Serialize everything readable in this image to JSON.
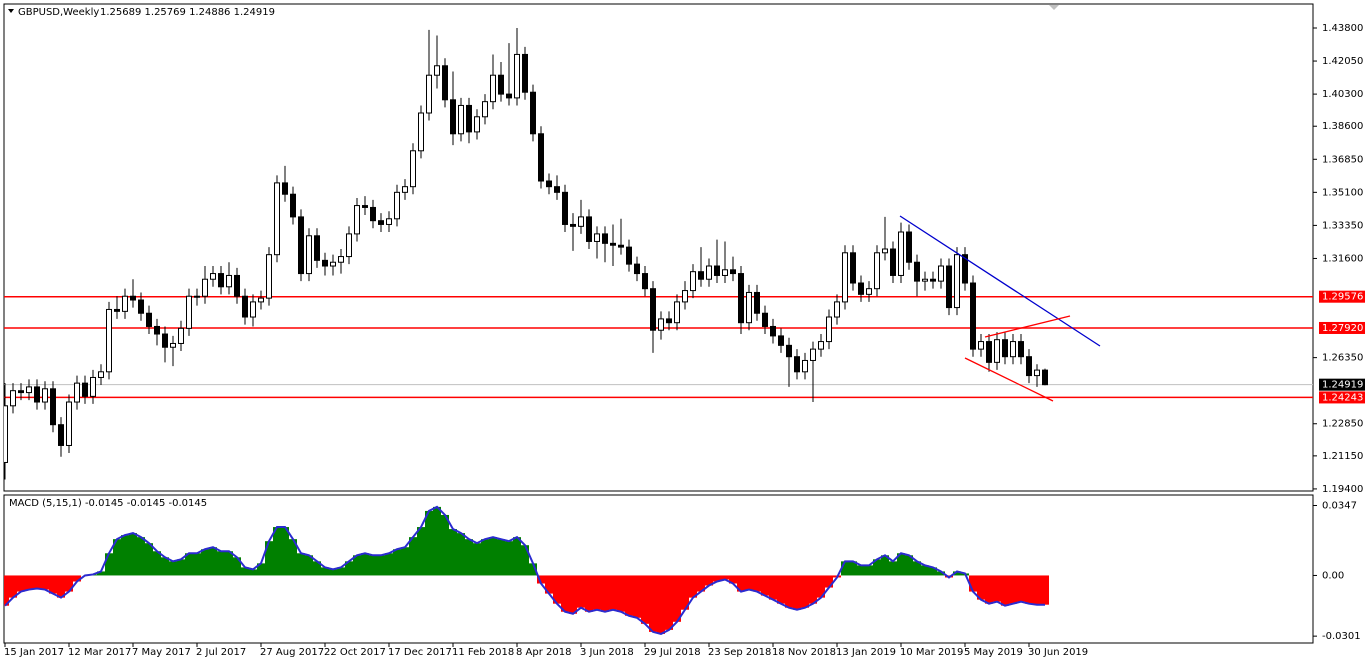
{
  "chart_data": [
    {
      "type": "candlestick",
      "title": "GBPUSD,Weekly",
      "info": "1.25689 1.25769 1.24886 1.24919",
      "categories": [
        "15 Jan 2017",
        null,
        null,
        null,
        null,
        null,
        null,
        null,
        "12 Mar 2017",
        null,
        null,
        null,
        null,
        null,
        null,
        null,
        "7 May 2017",
        null,
        null,
        null,
        null,
        null,
        null,
        null,
        "2 Jul 2017",
        null,
        null,
        null,
        null,
        null,
        null,
        null,
        "27 Aug 2017",
        null,
        null,
        null,
        null,
        null,
        null,
        null,
        "22 Oct 2017",
        null,
        null,
        null,
        null,
        null,
        null,
        null,
        "17 Dec 2017",
        null,
        null,
        null,
        null,
        null,
        null,
        null,
        "11 Feb 2018",
        null,
        null,
        null,
        null,
        null,
        null,
        null,
        "8 Apr 2018",
        null,
        null,
        null,
        null,
        null,
        null,
        null,
        "3 Jun 2018",
        null,
        null,
        null,
        null,
        null,
        null,
        null,
        "29 Jul 2018",
        null,
        null,
        null,
        null,
        null,
        null,
        null,
        "23 Sep 2018",
        null,
        null,
        null,
        null,
        null,
        null,
        null,
        "18 Nov 2018",
        null,
        null,
        null,
        null,
        null,
        null,
        null,
        "13 Jan 2019",
        null,
        null,
        null,
        null,
        null,
        null,
        null,
        "10 Mar 2019",
        null,
        null,
        null,
        null,
        null,
        null,
        null,
        "5 May 2019",
        null,
        null,
        null,
        null,
        null,
        null,
        null,
        "30 Jun 2019",
        null,
        null
      ],
      "ohlc": [
        [
          1.208,
          1.25,
          1.199,
          1.238
        ],
        [
          1.238,
          1.25,
          1.234,
          1.246
        ],
        [
          1.246,
          1.25,
          1.241,
          1.245
        ],
        [
          1.245,
          1.252,
          1.241,
          1.248
        ],
        [
          1.248,
          1.252,
          1.236,
          1.24
        ],
        [
          1.24,
          1.251,
          1.236,
          1.247
        ],
        [
          1.247,
          1.251,
          1.224,
          1.228
        ],
        [
          1.228,
          1.232,
          1.211,
          1.217
        ],
        [
          1.217,
          1.244,
          1.213,
          1.24
        ],
        [
          1.24,
          1.254,
          1.236,
          1.25
        ],
        [
          1.25,
          1.254,
          1.239,
          1.243
        ],
        [
          1.243,
          1.257,
          1.239,
          1.253
        ],
        [
          1.253,
          1.26,
          1.249,
          1.256
        ],
        [
          1.256,
          1.293,
          1.252,
          1.289
        ],
        [
          1.289,
          1.296,
          1.284,
          1.288
        ],
        [
          1.288,
          1.3,
          1.284,
          1.296
        ],
        [
          1.296,
          1.305,
          1.29,
          1.294
        ],
        [
          1.294,
          1.298,
          1.283,
          1.287
        ],
        [
          1.287,
          1.291,
          1.276,
          1.28
        ],
        [
          1.28,
          1.284,
          1.27,
          1.276
        ],
        [
          1.276,
          1.28,
          1.261,
          1.269
        ],
        [
          1.269,
          1.275,
          1.259,
          1.271
        ],
        [
          1.271,
          1.283,
          1.267,
          1.279
        ],
        [
          1.279,
          1.3,
          1.275,
          1.296
        ],
        [
          1.296,
          1.3,
          1.291,
          1.296
        ],
        [
          1.296,
          1.312,
          1.292,
          1.305
        ],
        [
          1.305,
          1.312,
          1.301,
          1.308
        ],
        [
          1.308,
          1.312,
          1.297,
          1.301
        ],
        [
          1.301,
          1.314,
          1.297,
          1.307
        ],
        [
          1.307,
          1.311,
          1.292,
          1.296
        ],
        [
          1.296,
          1.3,
          1.281,
          1.285
        ],
        [
          1.285,
          1.297,
          1.28,
          1.293
        ],
        [
          1.293,
          1.299,
          1.289,
          1.295
        ],
        [
          1.295,
          1.322,
          1.291,
          1.318
        ],
        [
          1.318,
          1.36,
          1.314,
          1.356
        ],
        [
          1.356,
          1.365,
          1.346,
          1.35
        ],
        [
          1.35,
          1.354,
          1.334,
          1.338
        ],
        [
          1.338,
          1.342,
          1.304,
          1.308
        ],
        [
          1.308,
          1.332,
          1.304,
          1.328
        ],
        [
          1.328,
          1.332,
          1.311,
          1.315
        ],
        [
          1.315,
          1.319,
          1.307,
          1.312
        ],
        [
          1.312,
          1.318,
          1.307,
          1.314
        ],
        [
          1.314,
          1.321,
          1.308,
          1.317
        ],
        [
          1.317,
          1.333,
          1.313,
          1.329
        ],
        [
          1.329,
          1.348,
          1.325,
          1.344
        ],
        [
          1.344,
          1.349,
          1.339,
          1.343
        ],
        [
          1.343,
          1.347,
          1.332,
          1.336
        ],
        [
          1.336,
          1.34,
          1.33,
          1.334
        ],
        [
          1.334,
          1.341,
          1.33,
          1.337
        ],
        [
          1.337,
          1.355,
          1.333,
          1.351
        ],
        [
          1.351,
          1.358,
          1.347,
          1.354
        ],
        [
          1.354,
          1.377,
          1.35,
          1.373
        ],
        [
          1.373,
          1.397,
          1.369,
          1.393
        ],
        [
          1.393,
          1.437,
          1.389,
          1.413
        ],
        [
          1.413,
          1.434,
          1.406,
          1.418
        ],
        [
          1.418,
          1.422,
          1.396,
          1.4
        ],
        [
          1.4,
          1.415,
          1.376,
          1.382
        ],
        [
          1.382,
          1.401,
          1.378,
          1.397
        ],
        [
          1.397,
          1.401,
          1.377,
          1.383
        ],
        [
          1.383,
          1.395,
          1.379,
          1.391
        ],
        [
          1.391,
          1.403,
          1.387,
          1.399
        ],
        [
          1.399,
          1.424,
          1.395,
          1.413
        ],
        [
          1.413,
          1.42,
          1.399,
          1.403
        ],
        [
          1.403,
          1.43,
          1.397,
          1.401
        ],
        [
          1.401,
          1.438,
          1.397,
          1.424
        ],
        [
          1.424,
          1.428,
          1.4,
          1.404
        ],
        [
          1.404,
          1.408,
          1.378,
          1.382
        ],
        [
          1.382,
          1.386,
          1.353,
          1.357
        ],
        [
          1.357,
          1.361,
          1.35,
          1.354
        ],
        [
          1.354,
          1.36,
          1.347,
          1.351
        ],
        [
          1.351,
          1.355,
          1.33,
          1.334
        ],
        [
          1.334,
          1.34,
          1.32,
          1.333
        ],
        [
          1.333,
          1.347,
          1.329,
          1.338
        ],
        [
          1.338,
          1.342,
          1.321,
          1.325
        ],
        [
          1.325,
          1.333,
          1.316,
          1.329
        ],
        [
          1.329,
          1.333,
          1.314,
          1.324
        ],
        [
          1.324,
          1.334,
          1.312,
          1.323
        ],
        [
          1.323,
          1.337,
          1.318,
          1.322
        ],
        [
          1.322,
          1.326,
          1.309,
          1.313
        ],
        [
          1.313,
          1.317,
          1.304,
          1.308
        ],
        [
          1.308,
          1.312,
          1.296,
          1.3
        ],
        [
          1.3,
          1.304,
          1.266,
          1.278
        ],
        [
          1.278,
          1.288,
          1.273,
          1.284
        ],
        [
          1.284,
          1.288,
          1.278,
          1.282
        ],
        [
          1.282,
          1.297,
          1.278,
          1.293
        ],
        [
          1.293,
          1.304,
          1.289,
          1.299
        ],
        [
          1.299,
          1.313,
          1.295,
          1.309
        ],
        [
          1.309,
          1.322,
          1.301,
          1.305
        ],
        [
          1.305,
          1.316,
          1.301,
          1.312
        ],
        [
          1.312,
          1.326,
          1.303,
          1.307
        ],
        [
          1.307,
          1.325,
          1.303,
          1.31
        ],
        [
          1.31,
          1.317,
          1.304,
          1.308
        ],
        [
          1.308,
          1.312,
          1.276,
          1.282
        ],
        [
          1.282,
          1.302,
          1.278,
          1.298
        ],
        [
          1.298,
          1.302,
          1.283,
          1.287
        ],
        [
          1.287,
          1.291,
          1.276,
          1.28
        ],
        [
          1.28,
          1.284,
          1.271,
          1.275
        ],
        [
          1.275,
          1.279,
          1.266,
          1.27
        ],
        [
          1.27,
          1.274,
          1.248,
          1.264
        ],
        [
          1.264,
          1.268,
          1.252,
          1.256
        ],
        [
          1.256,
          1.266,
          1.252,
          1.262
        ],
        [
          1.262,
          1.272,
          1.24,
          1.268
        ],
        [
          1.268,
          1.276,
          1.264,
          1.272
        ],
        [
          1.272,
          1.289,
          1.268,
          1.285
        ],
        [
          1.285,
          1.297,
          1.281,
          1.293
        ],
        [
          1.293,
          1.323,
          1.289,
          1.319
        ],
        [
          1.319,
          1.323,
          1.299,
          1.303
        ],
        [
          1.303,
          1.307,
          1.293,
          1.297
        ],
        [
          1.297,
          1.304,
          1.293,
          1.3
        ],
        [
          1.3,
          1.323,
          1.296,
          1.319
        ],
        [
          1.319,
          1.338,
          1.315,
          1.321
        ],
        [
          1.321,
          1.325,
          1.303,
          1.307
        ],
        [
          1.307,
          1.335,
          1.303,
          1.33
        ],
        [
          1.33,
          1.334,
          1.31,
          1.314
        ],
        [
          1.314,
          1.318,
          1.296,
          1.304
        ],
        [
          1.304,
          1.309,
          1.299,
          1.305
        ],
        [
          1.305,
          1.309,
          1.3,
          1.304
        ],
        [
          1.304,
          1.316,
          1.3,
          1.312
        ],
        [
          1.312,
          1.316,
          1.286,
          1.29
        ],
        [
          1.29,
          1.322,
          1.286,
          1.318
        ],
        [
          1.318,
          1.322,
          1.299,
          1.303
        ],
        [
          1.303,
          1.307,
          1.264,
          1.268
        ],
        [
          1.268,
          1.276,
          1.264,
          1.272
        ],
        [
          1.272,
          1.276,
          1.256,
          1.261
        ],
        [
          1.261,
          1.277,
          1.257,
          1.273
        ],
        [
          1.273,
          1.277,
          1.26,
          1.264
        ],
        [
          1.264,
          1.276,
          1.26,
          1.272
        ],
        [
          1.272,
          1.276,
          1.26,
          1.264
        ],
        [
          1.264,
          1.268,
          1.25,
          1.254
        ],
        [
          1.254,
          1.26,
          1.248,
          1.2569
        ],
        [
          1.25689,
          1.25769,
          1.24886,
          1.24919
        ]
      ],
      "up_color": "#ffffff",
      "down_color": "#000000",
      "ylim": [
        1.1929,
        1.4507
      ],
      "yticks": [
        {
          "value": 1.438,
          "label": "1.43800"
        },
        {
          "value": 1.4205,
          "label": "1.42050"
        },
        {
          "value": 1.403,
          "label": "1.40300"
        },
        {
          "value": 1.386,
          "label": "1.38600"
        },
        {
          "value": 1.3685,
          "label": "1.36850"
        },
        {
          "value": 1.351,
          "label": "1.35100"
        },
        {
          "value": 1.3335,
          "label": "1.33350"
        },
        {
          "value": 1.316,
          "label": "1.31600"
        },
        {
          "value": 1.2635,
          "label": "1.26350"
        },
        {
          "value": 1.2285,
          "label": "1.22850"
        },
        {
          "value": 1.2115,
          "label": "1.21150"
        },
        {
          "value": 1.194,
          "label": "1.19400"
        }
      ],
      "levels": [
        {
          "value": 1.29576,
          "label": "1.29576"
        },
        {
          "value": 1.2792,
          "label": "1.27920"
        },
        {
          "value": 1.24243,
          "label": "1.24243"
        }
      ],
      "level_color": "#ff0000",
      "current_price": {
        "value": 1.24919,
        "label": "1.24919"
      }
    },
    {
      "type": "histogram-line",
      "title": "MACD (5,15,1) -0.0145 -0.0145 -0.0145",
      "values": [
        -0.015,
        -0.011,
        -0.008,
        -0.007,
        -0.0065,
        -0.007,
        -0.009,
        -0.011,
        -0.008,
        -0.003,
        0.0,
        0.0005,
        0.002,
        0.011,
        0.018,
        0.02,
        0.021,
        0.019,
        0.016,
        0.012,
        0.009,
        0.007,
        0.008,
        0.011,
        0.011,
        0.013,
        0.014,
        0.012,
        0.012,
        0.009,
        0.004,
        0.003,
        0.006,
        0.017,
        0.024,
        0.024,
        0.018,
        0.011,
        0.01,
        0.007,
        0.004,
        0.003,
        0.004,
        0.007,
        0.01,
        0.011,
        0.01,
        0.01,
        0.011,
        0.013,
        0.014,
        0.019,
        0.024,
        0.032,
        0.034,
        0.03,
        0.023,
        0.021,
        0.018,
        0.016,
        0.018,
        0.019,
        0.018,
        0.017,
        0.019,
        0.015,
        0.006,
        -0.004,
        -0.009,
        -0.014,
        -0.018,
        -0.019,
        -0.016,
        -0.018,
        -0.017,
        -0.018,
        -0.017,
        -0.018,
        -0.02,
        -0.021,
        -0.024,
        -0.028,
        -0.029,
        -0.027,
        -0.023,
        -0.017,
        -0.011,
        -0.008,
        -0.005,
        -0.003,
        -0.002,
        -0.004,
        -0.008,
        -0.007,
        -0.008,
        -0.01,
        -0.012,
        -0.014,
        -0.016,
        -0.017,
        -0.016,
        -0.014,
        -0.011,
        -0.006,
        -0.001,
        0.007,
        0.007,
        0.005,
        0.005,
        0.008,
        0.01,
        0.007,
        0.011,
        0.01,
        0.007,
        0.005,
        0.004,
        0.002,
        -0.001,
        0.002,
        0.001,
        -0.008,
        -0.012,
        -0.014,
        -0.013,
        -0.015,
        -0.014,
        -0.013,
        -0.014,
        -0.0145,
        -0.0145
      ],
      "positive_color": "#008000",
      "negative_color": "#ff0000",
      "line_color": "#2b2bd0",
      "ylim": [
        -0.0335,
        0.0399
      ],
      "yticks": [
        0.0347,
        {
          "value": 0,
          "label": "0.00"
        },
        -0.0301
      ]
    }
  ]
}
